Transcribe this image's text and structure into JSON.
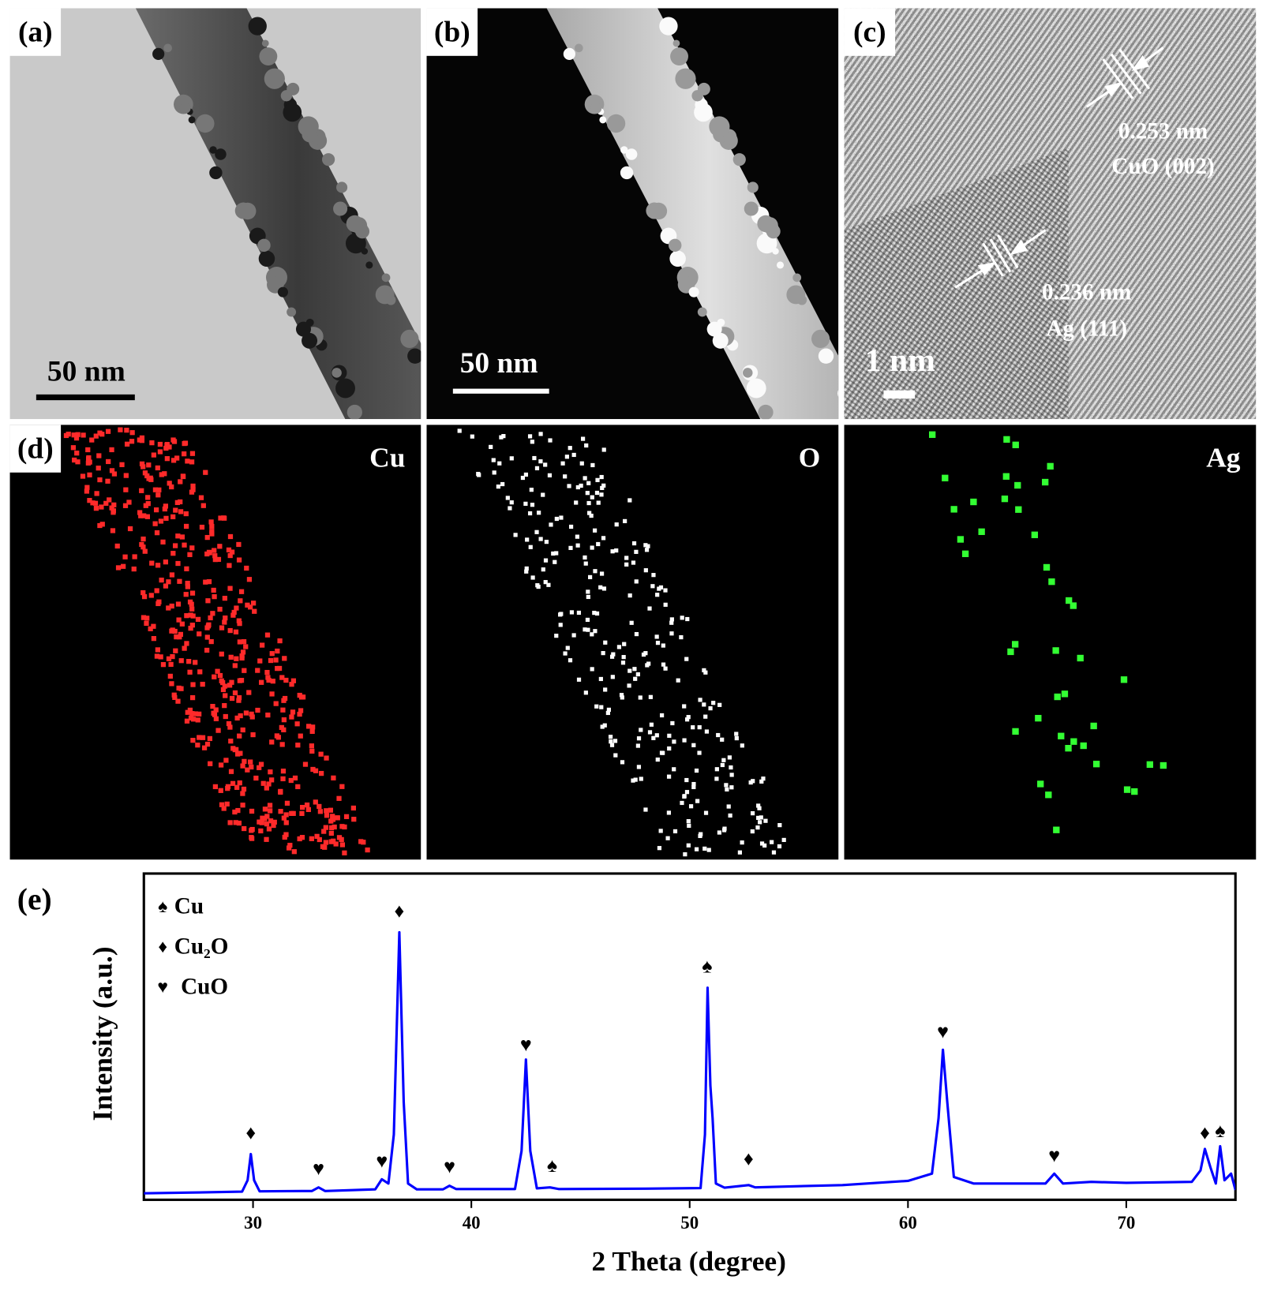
{
  "panels": [
    {
      "label": "(a)",
      "scale_bar": "50 nm"
    },
    {
      "label": "(b)",
      "scale_bar": "50 nm"
    },
    {
      "label": "(c)",
      "scale_bar": "1 nm",
      "annotations": [
        "0.253 nm",
        "CuO (002)",
        "0.236 nm",
        "Ag (111)"
      ]
    },
    {
      "label": "(d)",
      "element": "Cu"
    },
    {
      "element": "O"
    },
    {
      "element": "Ag"
    }
  ],
  "chart_data": {
    "type": "line",
    "panel_label": "(e)",
    "x_label": "2 Theta (degree)",
    "y_label": "Intensity (a.u.)",
    "xlim": [
      25,
      75
    ],
    "ylim": [
      0,
      100
    ],
    "xticks": [
      30,
      40,
      50,
      60,
      70
    ],
    "color": "#0000ff",
    "x": [
      25,
      27,
      29.5,
      29.75,
      29.9,
      30.05,
      30.3,
      32.7,
      33.0,
      33.3,
      35.6,
      35.9,
      36.2,
      36.45,
      36.7,
      36.9,
      37.1,
      37.5,
      38.7,
      39.0,
      39.3,
      42.0,
      42.3,
      42.5,
      42.7,
      43.0,
      43.6,
      44.0,
      48,
      50.5,
      50.7,
      50.82,
      50.95,
      51.05,
      51.2,
      51.6,
      52.7,
      53.0,
      57,
      60,
      61.1,
      61.4,
      61.6,
      61.8,
      62.1,
      63,
      66.3,
      66.7,
      67.1,
      68.4,
      70,
      73.0,
      73.4,
      73.6,
      73.85,
      74.1,
      74.3,
      74.5,
      74.8,
      75
    ],
    "values": [
      2.0,
      2.2,
      2.5,
      6,
      14,
      6,
      2.6,
      2.7,
      3.8,
      2.7,
      3.2,
      6.3,
      5,
      20,
      82,
      30,
      5,
      3.2,
      3.2,
      4.3,
      3.3,
      3.3,
      15,
      43,
      15,
      3.5,
      3.8,
      3.3,
      3.4,
      3.6,
      20,
      65,
      35,
      25,
      5,
      3.7,
      4.5,
      3.8,
      4.5,
      5.8,
      8,
      25,
      46,
      30,
      7,
      5,
      5,
      8,
      5,
      5.5,
      5.2,
      5.5,
      9,
      15.6,
      10,
      5,
      16.4,
      6,
      8,
      3
    ],
    "legend": [
      {
        "symbol": "♠",
        "label": "Cu"
      },
      {
        "symbol": "♦",
        "label": "Cu₂O"
      },
      {
        "symbol": "♥",
        "label": "CuO"
      }
    ],
    "annotations": [
      {
        "text": "♦",
        "x": 29.9,
        "y": 20
      },
      {
        "text": "♥",
        "x": 33.0,
        "y": 9
      },
      {
        "text": "♥",
        "x": 35.9,
        "y": 11.3
      },
      {
        "text": "♦",
        "x": 36.7,
        "y": 88
      },
      {
        "text": "♥",
        "x": 39.0,
        "y": 9.6
      },
      {
        "text": "♥",
        "x": 42.5,
        "y": 47
      },
      {
        "text": "♠",
        "x": 43.7,
        "y": 10
      },
      {
        "text": "♠",
        "x": 50.8,
        "y": 71
      },
      {
        "text": "♦",
        "x": 52.7,
        "y": 12
      },
      {
        "text": "♥",
        "x": 61.6,
        "y": 51
      },
      {
        "text": "♥",
        "x": 66.7,
        "y": 13
      },
      {
        "text": "♦",
        "x": 73.6,
        "y": 20
      },
      {
        "text": "♠",
        "x": 74.3,
        "y": 20.6
      }
    ]
  }
}
